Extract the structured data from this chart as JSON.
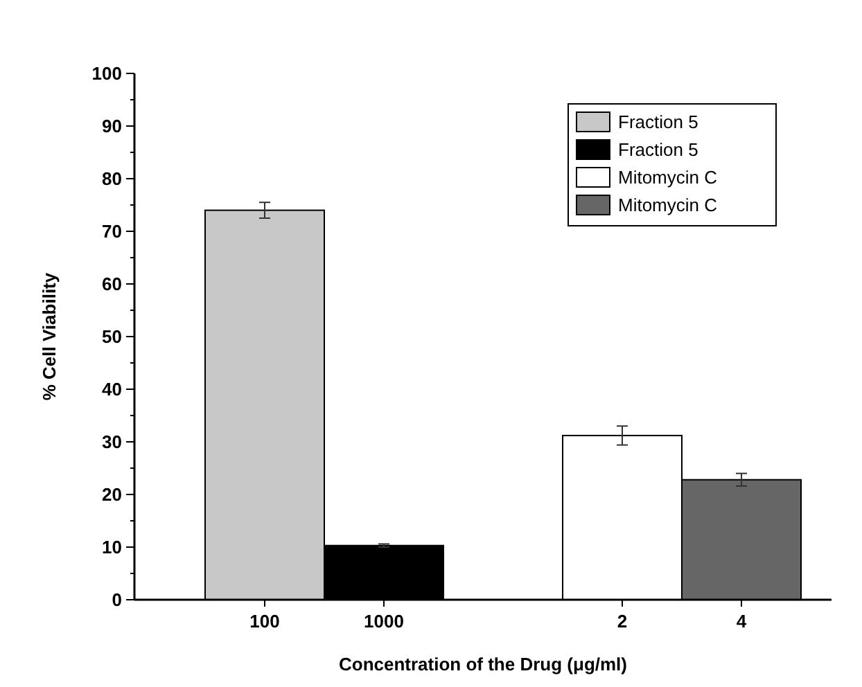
{
  "chart_data": {
    "type": "bar",
    "xlabel": "Concentration of the Drug (μg/ml)",
    "ylabel": "% Cell Viability",
    "categories": [
      "100",
      "1000",
      null,
      "2",
      "4"
    ],
    "series": [
      {
        "name": "Fraction 5",
        "color": "#c8c8c8",
        "values": [
          74,
          null,
          null,
          null,
          null
        ],
        "errors": [
          1.5,
          null,
          null,
          null,
          null
        ]
      },
      {
        "name": "Fraction 5",
        "color": "#000000",
        "values": [
          null,
          10.3,
          null,
          null,
          null
        ],
        "errors": [
          null,
          0.3,
          null,
          null,
          null
        ]
      },
      {
        "name": "Mitomycin C",
        "color": "#ffffff",
        "values": [
          null,
          null,
          null,
          31.2,
          null
        ],
        "errors": [
          null,
          null,
          null,
          1.8,
          null
        ]
      },
      {
        "name": "Mitomycin C",
        "color": "#666666",
        "values": [
          null,
          null,
          null,
          null,
          22.8
        ],
        "errors": [
          null,
          null,
          null,
          null,
          1.2
        ]
      }
    ],
    "ylim": [
      0,
      100
    ],
    "yticks": [
      0,
      10,
      20,
      30,
      40,
      50,
      60,
      70,
      80,
      90,
      100
    ],
    "legend": "top right",
    "grid": false
  }
}
